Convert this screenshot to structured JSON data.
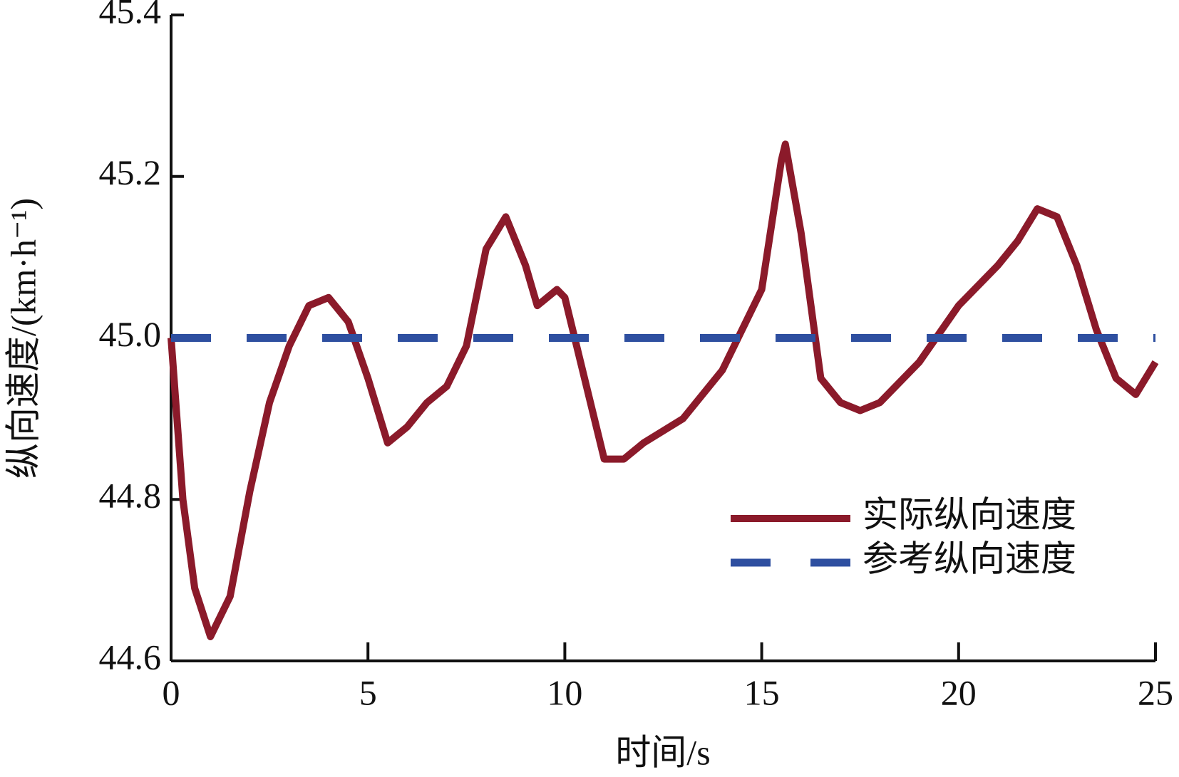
{
  "chart_data": {
    "type": "line",
    "xlabel": "时间/s",
    "ylabel": "纵向速度/(km·h⁻¹)",
    "xlim": [
      0,
      25
    ],
    "xticks": [
      0,
      5,
      10,
      15,
      20,
      25
    ],
    "ylim": [
      44.6,
      45.4
    ],
    "yticks": [
      44.6,
      44.8,
      {
        "value": 45,
        "label": "45.0"
      },
      45.2,
      45.4
    ],
    "legend": "lower right",
    "series": [
      {
        "name": "实际纵向速度",
        "color": "#8b1a2a",
        "style": "solid",
        "x": [
          0,
          0.3,
          0.6,
          1.0,
          1.5,
          2,
          2.5,
          3,
          3.5,
          4,
          4.5,
          5,
          5.5,
          6,
          6.5,
          7,
          7.5,
          8,
          8.5,
          9,
          9.3,
          9.8,
          10,
          10.5,
          11,
          11.5,
          12,
          13,
          14,
          15,
          15.5,
          15.6,
          16,
          16.5,
          17,
          17.5,
          18,
          19,
          20,
          21,
          21.5,
          22,
          22.5,
          23,
          23.5,
          24,
          24.5,
          25
        ],
        "values": [
          45.0,
          44.8,
          44.69,
          44.63,
          44.68,
          44.81,
          44.92,
          44.99,
          45.04,
          45.05,
          45.02,
          44.95,
          44.87,
          44.89,
          44.92,
          44.94,
          44.99,
          45.11,
          45.15,
          45.09,
          45.04,
          45.06,
          45.05,
          44.95,
          44.85,
          44.85,
          44.87,
          44.9,
          44.96,
          45.06,
          45.22,
          45.24,
          45.13,
          44.95,
          44.92,
          44.91,
          44.92,
          44.97,
          45.04,
          45.09,
          45.12,
          45.16,
          45.15,
          45.09,
          45.01,
          44.95,
          44.93,
          44.97
        ]
      },
      {
        "name": "参考纵向速度",
        "color": "#2e4fa0",
        "style": "dashed",
        "x": [
          0,
          25
        ],
        "values": [
          45,
          45
        ]
      }
    ]
  }
}
